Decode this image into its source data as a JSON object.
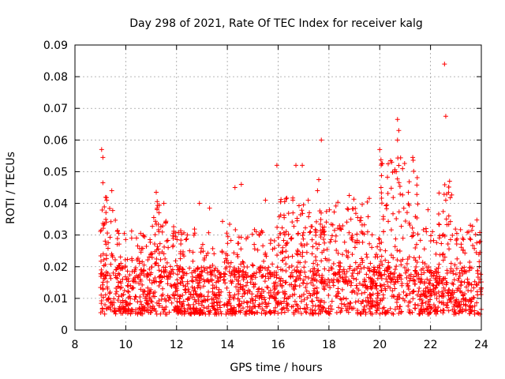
{
  "chart_data": {
    "type": "scatter",
    "title": "Day 298 of 2021, Rate Of TEC Index for receiver kalg",
    "xlabel": "GPS time / hours",
    "ylabel": "ROTI / TECUs",
    "xlim": [
      8,
      24
    ],
    "ylim": [
      0,
      0.09
    ],
    "x_ticks": [
      "8",
      "10",
      "12",
      "14",
      "16",
      "18",
      "20",
      "22",
      "24"
    ],
    "y_ticks": [
      "0",
      "0.01",
      "0.02",
      "0.03",
      "0.04",
      "0.05",
      "0.06",
      "0.07",
      "0.08",
      "0.09"
    ],
    "grid": true,
    "marker": "+",
    "color": "#ff0000",
    "data_range_x": [
      9.0,
      24.0
    ],
    "typical_band": [
      0.005,
      0.02
    ],
    "notable_points": [
      {
        "x": 9.05,
        "y": 0.057
      },
      {
        "x": 9.1,
        "y": 0.0545
      },
      {
        "x": 9.1,
        "y": 0.0465
      },
      {
        "x": 9.25,
        "y": 0.041
      },
      {
        "x": 9.45,
        "y": 0.044
      },
      {
        "x": 11.2,
        "y": 0.0435
      },
      {
        "x": 11.5,
        "y": 0.04
      },
      {
        "x": 12.9,
        "y": 0.04
      },
      {
        "x": 13.3,
        "y": 0.0385
      },
      {
        "x": 14.3,
        "y": 0.045
      },
      {
        "x": 14.55,
        "y": 0.046
      },
      {
        "x": 15.5,
        "y": 0.041
      },
      {
        "x": 15.95,
        "y": 0.052
      },
      {
        "x": 16.7,
        "y": 0.052
      },
      {
        "x": 16.95,
        "y": 0.052
      },
      {
        "x": 17.7,
        "y": 0.06
      },
      {
        "x": 17.6,
        "y": 0.0475
      },
      {
        "x": 17.55,
        "y": 0.044
      },
      {
        "x": 18.8,
        "y": 0.0425
      },
      {
        "x": 20.0,
        "y": 0.057
      },
      {
        "x": 20.1,
        "y": 0.0525
      },
      {
        "x": 20.05,
        "y": 0.045
      },
      {
        "x": 20.7,
        "y": 0.0665
      },
      {
        "x": 20.75,
        "y": 0.063
      },
      {
        "x": 20.7,
        "y": 0.06
      },
      {
        "x": 20.65,
        "y": 0.05
      },
      {
        "x": 21.3,
        "y": 0.0545
      },
      {
        "x": 21.9,
        "y": 0.038
      },
      {
        "x": 22.55,
        "y": 0.084
      },
      {
        "x": 22.6,
        "y": 0.0675
      },
      {
        "x": 22.75,
        "y": 0.047
      },
      {
        "x": 22.6,
        "y": 0.041
      },
      {
        "x": 23.5,
        "y": 0.031
      }
    ],
    "elevated_periods": [
      {
        "x_start": 9.0,
        "x_end": 9.6,
        "peak": 0.045
      },
      {
        "x_start": 11.0,
        "x_end": 11.7,
        "peak": 0.041
      },
      {
        "x_start": 16.0,
        "x_end": 19.6,
        "peak": 0.042
      },
      {
        "x_start": 20.0,
        "x_end": 21.5,
        "peak": 0.055
      },
      {
        "x_start": 22.3,
        "x_end": 22.9,
        "peak": 0.048
      }
    ]
  }
}
